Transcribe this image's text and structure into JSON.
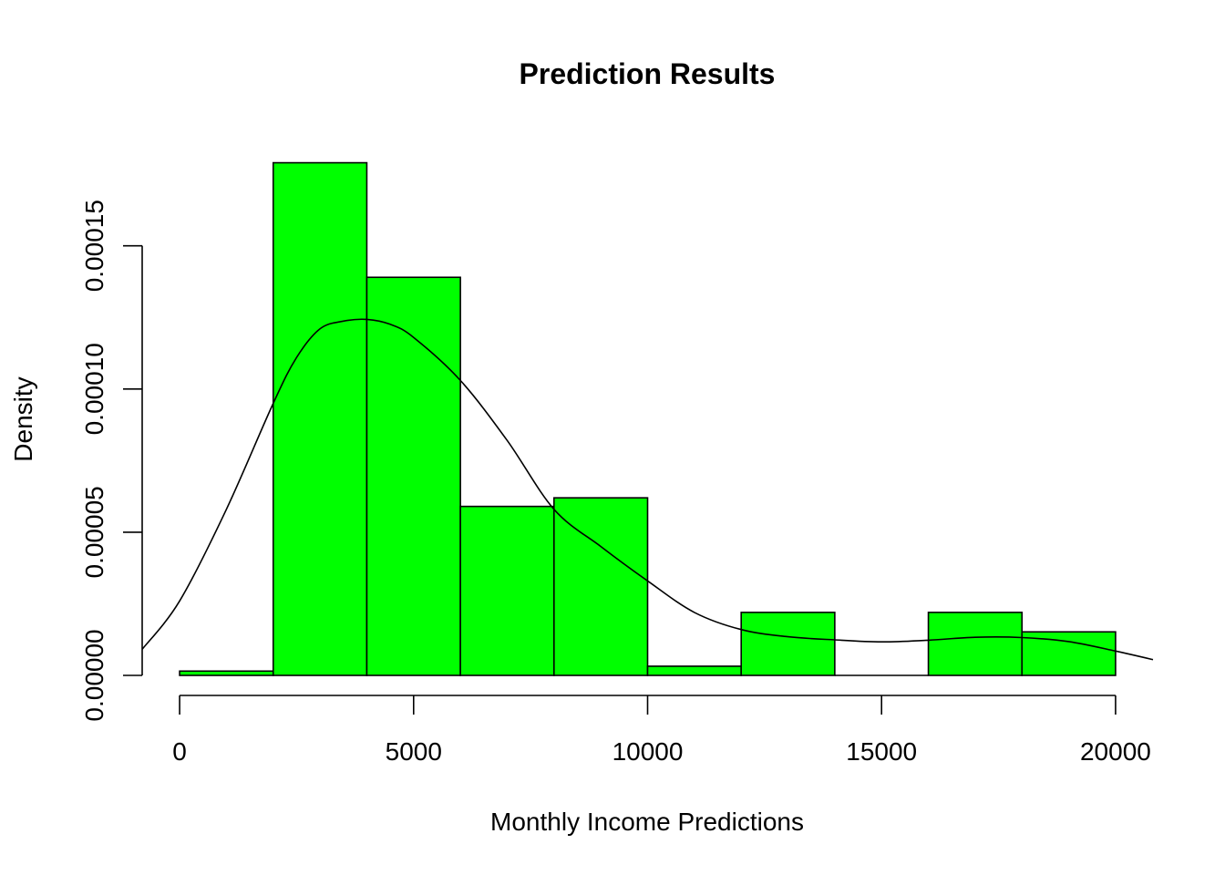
{
  "chart_data": {
    "type": "histogram",
    "title": "Prediction Results",
    "xlabel": "Monthly Income Predictions",
    "ylabel": "Density",
    "xlim": [
      -800,
      20800
    ],
    "ylim": [
      0,
      0.00019
    ],
    "x_ticks": [
      0,
      5000,
      10000,
      15000,
      20000
    ],
    "x_tick_labels": [
      "0",
      "5000",
      "10000",
      "15000",
      "20000"
    ],
    "y_ticks": [
      0,
      5e-05,
      0.0001,
      0.00015
    ],
    "y_tick_labels": [
      "0.00000",
      "0.00005",
      "0.00010",
      "0.00015"
    ],
    "bar_color": "#00ff00",
    "bins": [
      {
        "start": 0,
        "end": 2000,
        "density": 1.5e-06
      },
      {
        "start": 2000,
        "end": 4000,
        "density": 0.000179
      },
      {
        "start": 4000,
        "end": 6000,
        "density": 0.000139
      },
      {
        "start": 6000,
        "end": 8000,
        "density": 5.9e-05
      },
      {
        "start": 8000,
        "end": 10000,
        "density": 6.2e-05
      },
      {
        "start": 10000,
        "end": 12000,
        "density": 3.2e-06
      },
      {
        "start": 12000,
        "end": 14000,
        "density": 2.2e-05
      },
      {
        "start": 14000,
        "end": 16000,
        "density": 0
      },
      {
        "start": 16000,
        "end": 18000,
        "density": 2.2e-05
      },
      {
        "start": 18000,
        "end": 20000,
        "density": 1.52e-05
      }
    ],
    "density_curve": {
      "x": [
        -800,
        0,
        1000,
        2000,
        2500,
        3000,
        3500,
        4000,
        4500,
        5000,
        6000,
        7000,
        8000,
        9000,
        10000,
        11000,
        12000,
        13000,
        14000,
        15000,
        16000,
        17000,
        18000,
        19000,
        20000,
        20800
      ],
      "y": [
        9.1e-06,
        2.6e-05,
        5.8e-05,
        9.5e-05,
        0.000111,
        0.000121,
        0.0001237,
        0.0001243,
        0.0001226,
        0.000118,
        0.000103,
        8.2e-05,
        5.8e-05,
        4.5e-05,
        3.3e-05,
        2.2e-05,
        1.6e-05,
        1.35e-05,
        1.24e-05,
        1.17e-05,
        1.23e-05,
        1.33e-05,
        1.32e-05,
        1.18e-05,
        8.5e-06,
        5.5e-06
      ]
    }
  }
}
